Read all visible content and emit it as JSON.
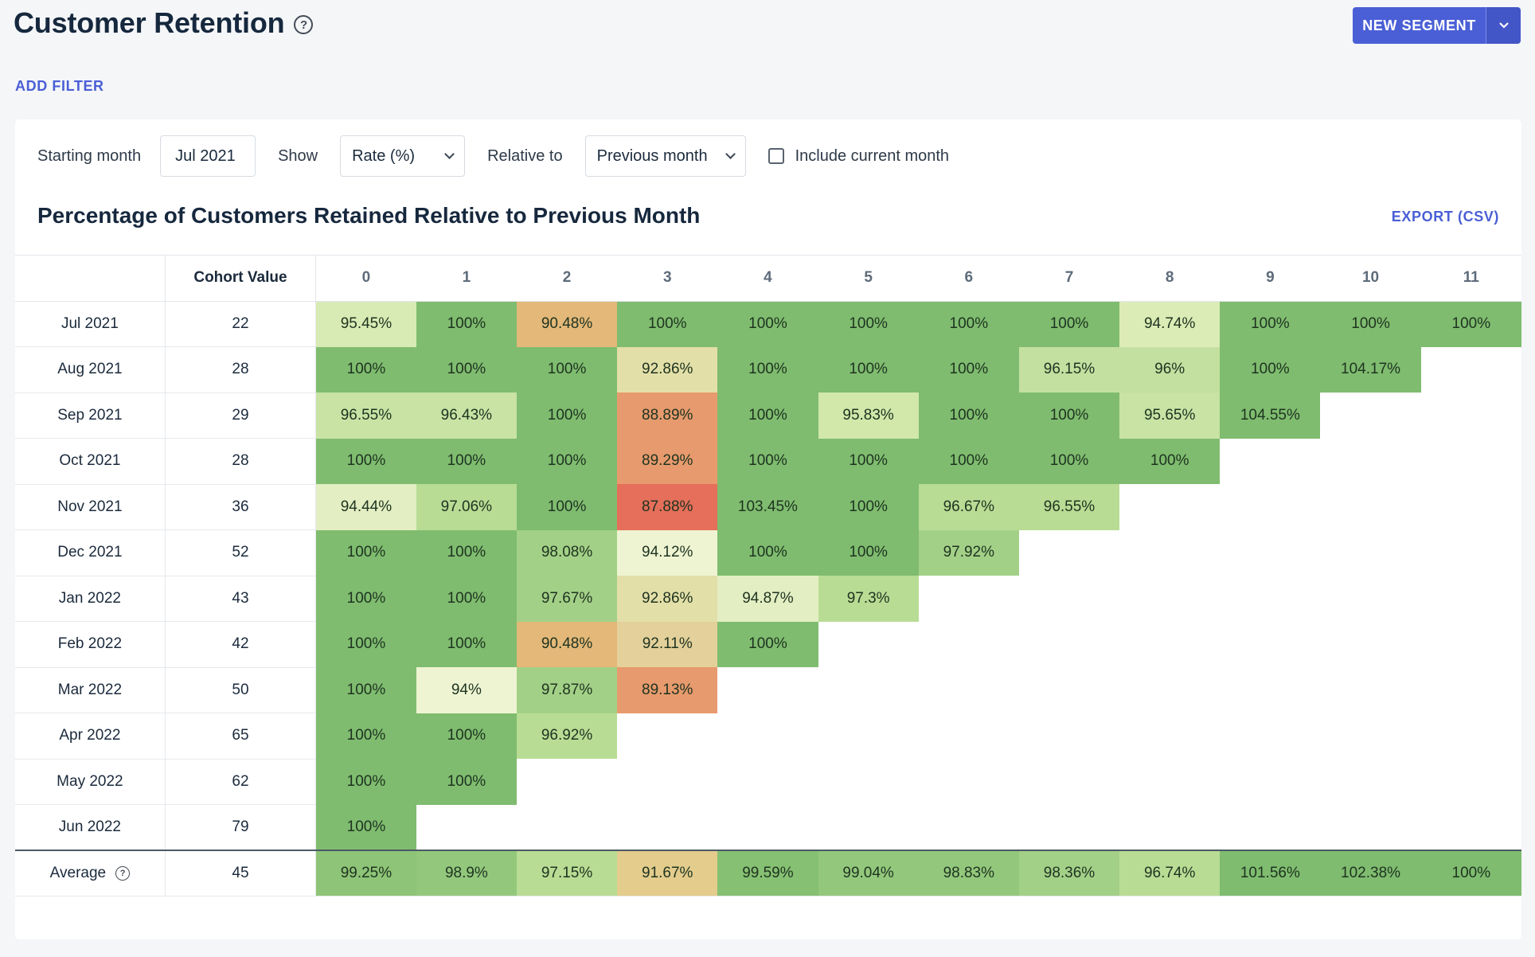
{
  "header": {
    "title": "Customer Retention",
    "help_icon": "?",
    "new_segment_label": "NEW SEGMENT",
    "add_filter_label": "ADD FILTER"
  },
  "controls": {
    "starting_month_label": "Starting month",
    "starting_month_value": "Jul 2021",
    "show_label": "Show",
    "show_value": "Rate (%)",
    "relative_label": "Relative to",
    "relative_value": "Previous month",
    "include_current_label": "Include current month",
    "include_current_checked": false
  },
  "chart": {
    "title": "Percentage of Customers Retained Relative to Previous Month",
    "export_label": "EXPORT (CSV)"
  },
  "colors": {
    "accent": "#4a5fd6",
    "green_dark": "#7fbc6f",
    "green": "#93c87c",
    "green_light": "#b8dc94",
    "yellow_green": "#d8ebb4",
    "pale": "#e9f2cc",
    "khaki": "#e3dfa8",
    "tan": "#e3b878",
    "orange": "#e79a6d",
    "red": "#e56f5a"
  },
  "table": {
    "cohort_header": "Cohort Value",
    "period_headers": [
      "0",
      "1",
      "2",
      "3",
      "4",
      "5",
      "6",
      "7",
      "8",
      "9",
      "10",
      "11"
    ],
    "rows": [
      {
        "month": "Jul 2021",
        "cohort": "22",
        "cells": [
          [
            "95.45%",
            "#d8ebb4"
          ],
          [
            "100%",
            "#7fbc6f"
          ],
          [
            "90.48%",
            "#e3b878"
          ],
          [
            "100%",
            "#7fbc6f"
          ],
          [
            "100%",
            "#7fbc6f"
          ],
          [
            "100%",
            "#7fbc6f"
          ],
          [
            "100%",
            "#7fbc6f"
          ],
          [
            "100%",
            "#7fbc6f"
          ],
          [
            "94.74%",
            "#dcecb6"
          ],
          [
            "100%",
            "#7fbc6f"
          ],
          [
            "100%",
            "#7fbc6f"
          ],
          [
            "100%",
            "#7fbc6f"
          ]
        ]
      },
      {
        "month": "Aug 2021",
        "cohort": "28",
        "cells": [
          [
            "100%",
            "#7fbc6f"
          ],
          [
            "100%",
            "#7fbc6f"
          ],
          [
            "100%",
            "#7fbc6f"
          ],
          [
            "92.86%",
            "#e3dfa8"
          ],
          [
            "100%",
            "#7fbc6f"
          ],
          [
            "100%",
            "#7fbc6f"
          ],
          [
            "100%",
            "#7fbc6f"
          ],
          [
            "96.15%",
            "#c3e0a0"
          ],
          [
            "96%",
            "#c3e0a0"
          ],
          [
            "100%",
            "#7fbc6f"
          ],
          [
            "104.17%",
            "#7fbc6f"
          ]
        ]
      },
      {
        "month": "Sep 2021",
        "cohort": "29",
        "cells": [
          [
            "96.55%",
            "#c8e3a4"
          ],
          [
            "96.43%",
            "#c8e3a4"
          ],
          [
            "100%",
            "#7fbc6f"
          ],
          [
            "88.89%",
            "#e79a6d"
          ],
          [
            "100%",
            "#7fbc6f"
          ],
          [
            "95.83%",
            "#d1e8aa"
          ],
          [
            "100%",
            "#7fbc6f"
          ],
          [
            "100%",
            "#7fbc6f"
          ],
          [
            "95.65%",
            "#c8e3a4"
          ],
          [
            "104.55%",
            "#7fbc6f"
          ]
        ]
      },
      {
        "month": "Oct 2021",
        "cohort": "28",
        "cells": [
          [
            "100%",
            "#7fbc6f"
          ],
          [
            "100%",
            "#7fbc6f"
          ],
          [
            "100%",
            "#7fbc6f"
          ],
          [
            "89.29%",
            "#e79a6d"
          ],
          [
            "100%",
            "#7fbc6f"
          ],
          [
            "100%",
            "#7fbc6f"
          ],
          [
            "100%",
            "#7fbc6f"
          ],
          [
            "100%",
            "#7fbc6f"
          ],
          [
            "100%",
            "#7fbc6f"
          ]
        ]
      },
      {
        "month": "Nov 2021",
        "cohort": "36",
        "cells": [
          [
            "94.44%",
            "#e3eec2"
          ],
          [
            "97.06%",
            "#b8dc94"
          ],
          [
            "100%",
            "#7fbc6f"
          ],
          [
            "87.88%",
            "#e56f5a"
          ],
          [
            "103.45%",
            "#7fbc6f"
          ],
          [
            "100%",
            "#7fbc6f"
          ],
          [
            "96.67%",
            "#b8dc94"
          ],
          [
            "96.55%",
            "#b8dc94"
          ]
        ]
      },
      {
        "month": "Dec 2021",
        "cohort": "52",
        "cells": [
          [
            "100%",
            "#7fbc6f"
          ],
          [
            "100%",
            "#7fbc6f"
          ],
          [
            "98.08%",
            "#a3d087"
          ],
          [
            "94.12%",
            "#eef4d2"
          ],
          [
            "100%",
            "#7fbc6f"
          ],
          [
            "100%",
            "#7fbc6f"
          ],
          [
            "97.92%",
            "#a3d087"
          ]
        ]
      },
      {
        "month": "Jan 2022",
        "cohort": "43",
        "cells": [
          [
            "100%",
            "#7fbc6f"
          ],
          [
            "100%",
            "#7fbc6f"
          ],
          [
            "97.67%",
            "#a3d087"
          ],
          [
            "92.86%",
            "#e3dfa8"
          ],
          [
            "94.87%",
            "#e3eec2"
          ],
          [
            "97.3%",
            "#b8dc94"
          ]
        ]
      },
      {
        "month": "Feb 2022",
        "cohort": "42",
        "cells": [
          [
            "100%",
            "#7fbc6f"
          ],
          [
            "100%",
            "#7fbc6f"
          ],
          [
            "90.48%",
            "#e3b878"
          ],
          [
            "92.11%",
            "#e3d09a"
          ],
          [
            "100%",
            "#7fbc6f"
          ]
        ]
      },
      {
        "month": "Mar 2022",
        "cohort": "50",
        "cells": [
          [
            "100%",
            "#7fbc6f"
          ],
          [
            "94%",
            "#eef4d2"
          ],
          [
            "97.87%",
            "#a3d087"
          ],
          [
            "89.13%",
            "#e79a6d"
          ]
        ]
      },
      {
        "month": "Apr 2022",
        "cohort": "65",
        "cells": [
          [
            "100%",
            "#7fbc6f"
          ],
          [
            "100%",
            "#7fbc6f"
          ],
          [
            "96.92%",
            "#b8dc94"
          ]
        ]
      },
      {
        "month": "May 2022",
        "cohort": "62",
        "cells": [
          [
            "100%",
            "#7fbc6f"
          ],
          [
            "100%",
            "#7fbc6f"
          ]
        ]
      },
      {
        "month": "Jun 2022",
        "cohort": "79",
        "cells": [
          [
            "100%",
            "#7fbc6f"
          ]
        ]
      }
    ],
    "average": {
      "label": "Average",
      "cohort": "45",
      "cells": [
        [
          "99.25%",
          "#8ec477"
        ],
        [
          "98.9%",
          "#93c87c"
        ],
        [
          "97.15%",
          "#b8dc94"
        ],
        [
          "91.67%",
          "#e3cc8c"
        ],
        [
          "99.59%",
          "#86c072"
        ],
        [
          "99.04%",
          "#93c87c"
        ],
        [
          "98.83%",
          "#93c87c"
        ],
        [
          "98.36%",
          "#a3d087"
        ],
        [
          "96.74%",
          "#b8dc94"
        ],
        [
          "101.56%",
          "#7fbc6f"
        ],
        [
          "102.38%",
          "#7fbc6f"
        ],
        [
          "100%",
          "#7fbc6f"
        ]
      ]
    }
  }
}
